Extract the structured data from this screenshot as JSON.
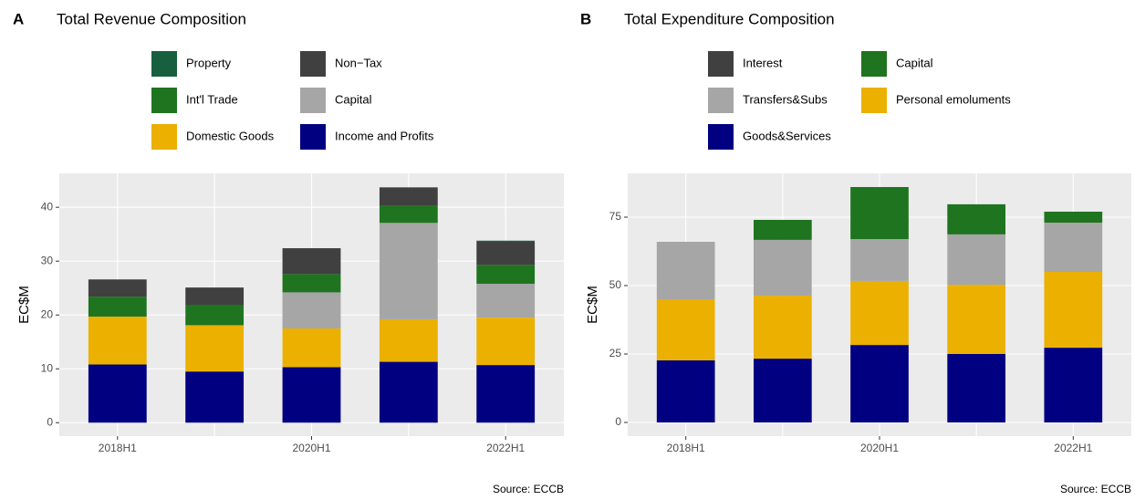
{
  "chart_data": [
    {
      "type": "stacked_bar",
      "panel_label": "A",
      "title": "Total Revenue Composition",
      "ylabel": "EC$M",
      "caption": "Source: ECCB",
      "categories": [
        "2018H1",
        null,
        "2020H1",
        null,
        "2022H1"
      ],
      "ylim": [
        -2.5,
        46.3
      ],
      "yticks": [
        0,
        10,
        20,
        30,
        40
      ],
      "grid": true,
      "series": [
        {
          "name": "Income and Profits",
          "color": "#000080",
          "values": [
            10.8,
            9.5,
            10.3,
            11.3,
            10.7
          ]
        },
        {
          "name": "Domestic Goods",
          "color": "#ebb000",
          "values": [
            8.9,
            8.6,
            7.2,
            7.9,
            8.8
          ]
        },
        {
          "name": "Capital",
          "color": "#a6a6a6",
          "values": [
            0,
            0,
            6.7,
            17.9,
            6.3
          ]
        },
        {
          "name": "Int'l Trade",
          "color": "#1f741f",
          "values": [
            3.7,
            3.8,
            3.4,
            3.2,
            3.5
          ]
        },
        {
          "name": "Non−Tax",
          "color": "#404040",
          "values": [
            3.2,
            3.2,
            4.8,
            3.4,
            4.3
          ]
        },
        {
          "name": "Property",
          "color": "#185f3f",
          "values": [
            0,
            0,
            0,
            0,
            0.2
          ]
        }
      ]
    },
    {
      "type": "stacked_bar",
      "panel_label": "B",
      "title": "Total Expenditure Composition",
      "ylabel": "EC$M",
      "caption": "Source: ECCB",
      "categories": [
        "2018H1",
        null,
        "2020H1",
        null,
        "2022H1"
      ],
      "ylim": [
        -5,
        91
      ],
      "yticks": [
        0,
        25,
        50,
        75
      ],
      "grid": true,
      "series": [
        {
          "name": "Goods&Services",
          "color": "#000080",
          "values": [
            22.7,
            23.3,
            28.3,
            25,
            27.3
          ]
        },
        {
          "name": "Personal emoluments",
          "color": "#ebb000",
          "values": [
            22.3,
            23,
            23.4,
            25.3,
            27.7
          ]
        },
        {
          "name": "Transfers&Subs",
          "color": "#a6a6a6",
          "values": [
            21,
            20.4,
            15.3,
            18.4,
            18
          ]
        },
        {
          "name": "Capital",
          "color": "#1f741f",
          "values": [
            0,
            7.3,
            19,
            11,
            4
          ]
        },
        {
          "name": "Interest",
          "color": "#404040",
          "values": [
            0,
            0,
            0,
            0,
            0
          ]
        }
      ]
    }
  ]
}
